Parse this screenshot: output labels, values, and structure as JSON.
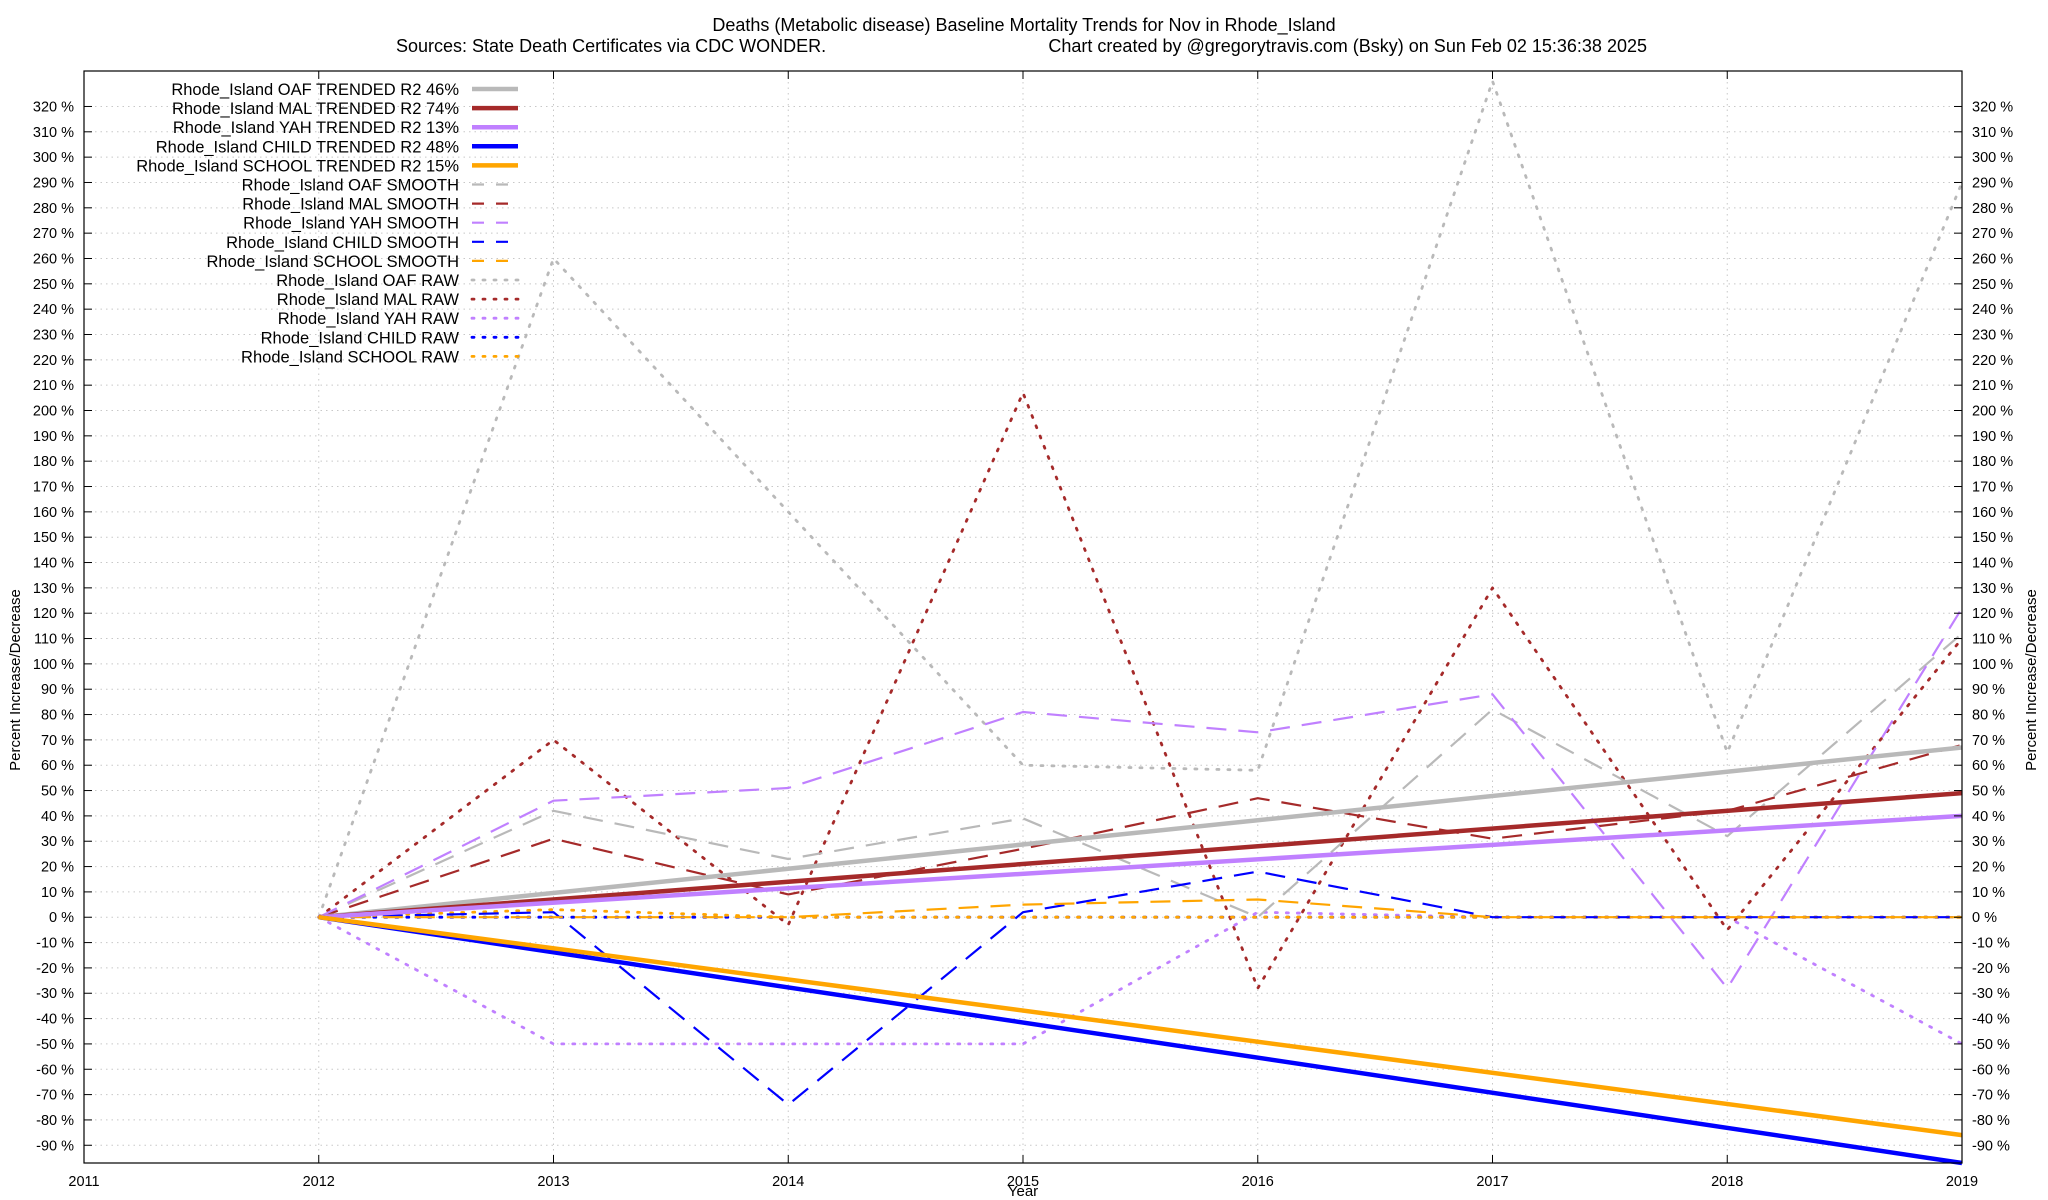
{
  "chart_data": {
    "type": "line",
    "title": "Deaths (Metabolic disease)  Baseline Mortality Trends for Nov in Rhode_Island",
    "subtitle_left": "Sources: State Death Certificates via CDC WONDER.",
    "subtitle_right": "Chart created by @gregorytravis.com (Bsky) on Sun Feb 02 15:36:38 2025",
    "xlabel": "Year",
    "ylabel": "Percent Increase/Decrease",
    "y2label": "Percent Increase/Decrease",
    "xlim": [
      2011,
      2019
    ],
    "ylim": [
      -97,
      334
    ],
    "x_ticks": [
      2011,
      2012,
      2013,
      2014,
      2015,
      2016,
      2017,
      2018,
      2019
    ],
    "y_ticks": [
      -90,
      -80,
      -70,
      -60,
      -50,
      -40,
      -30,
      -20,
      -10,
      0,
      10,
      20,
      30,
      40,
      50,
      60,
      70,
      80,
      90,
      100,
      110,
      120,
      130,
      140,
      150,
      160,
      170,
      180,
      190,
      200,
      210,
      220,
      230,
      240,
      250,
      260,
      270,
      280,
      290,
      300,
      310,
      320
    ],
    "y_tick_suffix": " %",
    "grid": true,
    "legend_position": "top-left",
    "series": [
      {
        "name": "Rhode_Island OAF TRENDED R2  46%",
        "style": "solid",
        "color": "#b9b9b9",
        "x": [
          2012,
          2019
        ],
        "y": [
          0,
          67
        ]
      },
      {
        "name": "Rhode_Island MAL TRENDED R2  74%",
        "style": "solid",
        "color": "#a52a2a",
        "x": [
          2012,
          2019
        ],
        "y": [
          0,
          49
        ]
      },
      {
        "name": "Rhode_Island YAH TRENDED R2  13%",
        "style": "solid",
        "color": "#c080ff",
        "x": [
          2012,
          2019
        ],
        "y": [
          0,
          40
        ]
      },
      {
        "name": "Rhode_Island CHILD TRENDED R2  48%",
        "style": "solid",
        "color": "#0000ff",
        "x": [
          2012,
          2019
        ],
        "y": [
          0,
          -97
        ]
      },
      {
        "name": "Rhode_Island SCHOOL TRENDED R2  15%",
        "style": "solid",
        "color": "#ffa500",
        "x": [
          2012,
          2019
        ],
        "y": [
          0,
          -86
        ]
      },
      {
        "name": "Rhode_Island OAF SMOOTH",
        "style": "dashed",
        "color": "#b9b9b9",
        "x": [
          2012,
          2013,
          2014,
          2015,
          2016,
          2017,
          2018,
          2019
        ],
        "y": [
          0,
          42,
          23,
          39,
          0,
          82,
          32,
          112
        ]
      },
      {
        "name": "Rhode_Island MAL SMOOTH",
        "style": "dashed",
        "color": "#a52a2a",
        "x": [
          2012,
          2013,
          2014,
          2015,
          2016,
          2017,
          2018,
          2019
        ],
        "y": [
          0,
          31,
          9,
          27,
          47,
          31,
          42,
          68
        ]
      },
      {
        "name": "Rhode_Island YAH SMOOTH",
        "style": "dashed",
        "color": "#c080ff",
        "x": [
          2012,
          2013,
          2014,
          2015,
          2016,
          2017,
          2018,
          2019
        ],
        "y": [
          0,
          46,
          51,
          81,
          73,
          88,
          -28,
          122
        ]
      },
      {
        "name": "Rhode_Island CHILD SMOOTH",
        "style": "dashed",
        "color": "#0000ff",
        "x": [
          2012,
          2013,
          2014,
          2015,
          2016,
          2017,
          2018,
          2019
        ],
        "y": [
          0,
          2,
          -74,
          2,
          18,
          0,
          0,
          0
        ]
      },
      {
        "name": "Rhode_Island SCHOOL SMOOTH",
        "style": "dashed",
        "color": "#ffa500",
        "x": [
          2012,
          2013,
          2014,
          2015,
          2016,
          2017,
          2018,
          2019
        ],
        "y": [
          0,
          0,
          0,
          5,
          7,
          0,
          0,
          0
        ]
      },
      {
        "name": "Rhode_Island OAF RAW",
        "style": "dotted",
        "color": "#b9b9b9",
        "x": [
          2012,
          2013,
          2014,
          2015,
          2016,
          2017,
          2018,
          2019
        ],
        "y": [
          0,
          260,
          160,
          60,
          58,
          330,
          65,
          290
        ]
      },
      {
        "name": "Rhode_Island MAL RAW",
        "style": "dotted",
        "color": "#a52a2a",
        "x": [
          2012,
          2013,
          2014,
          2015,
          2016,
          2017,
          2018,
          2019
        ],
        "y": [
          0,
          70,
          -3,
          207,
          -28,
          130,
          -5,
          110
        ]
      },
      {
        "name": "Rhode_Island YAH RAW",
        "style": "dotted",
        "color": "#c080ff",
        "x": [
          2012,
          2013,
          2014,
          2015,
          2016,
          2017,
          2018,
          2019
        ],
        "y": [
          0,
          -50,
          -50,
          -50,
          2,
          0,
          0,
          -50
        ]
      },
      {
        "name": "Rhode_Island CHILD RAW",
        "style": "dotted",
        "color": "#0000ff",
        "x": [
          2012,
          2013,
          2014,
          2015,
          2016,
          2017,
          2018,
          2019
        ],
        "y": [
          0,
          0,
          0,
          0,
          0,
          0,
          0,
          0
        ]
      },
      {
        "name": "Rhode_Island SCHOOL RAW",
        "style": "dotted",
        "color": "#ffa500",
        "x": [
          2012,
          2013,
          2014,
          2015,
          2016,
          2017,
          2018,
          2019
        ],
        "y": [
          0,
          3,
          0,
          0,
          0,
          0,
          0,
          0
        ]
      }
    ]
  }
}
